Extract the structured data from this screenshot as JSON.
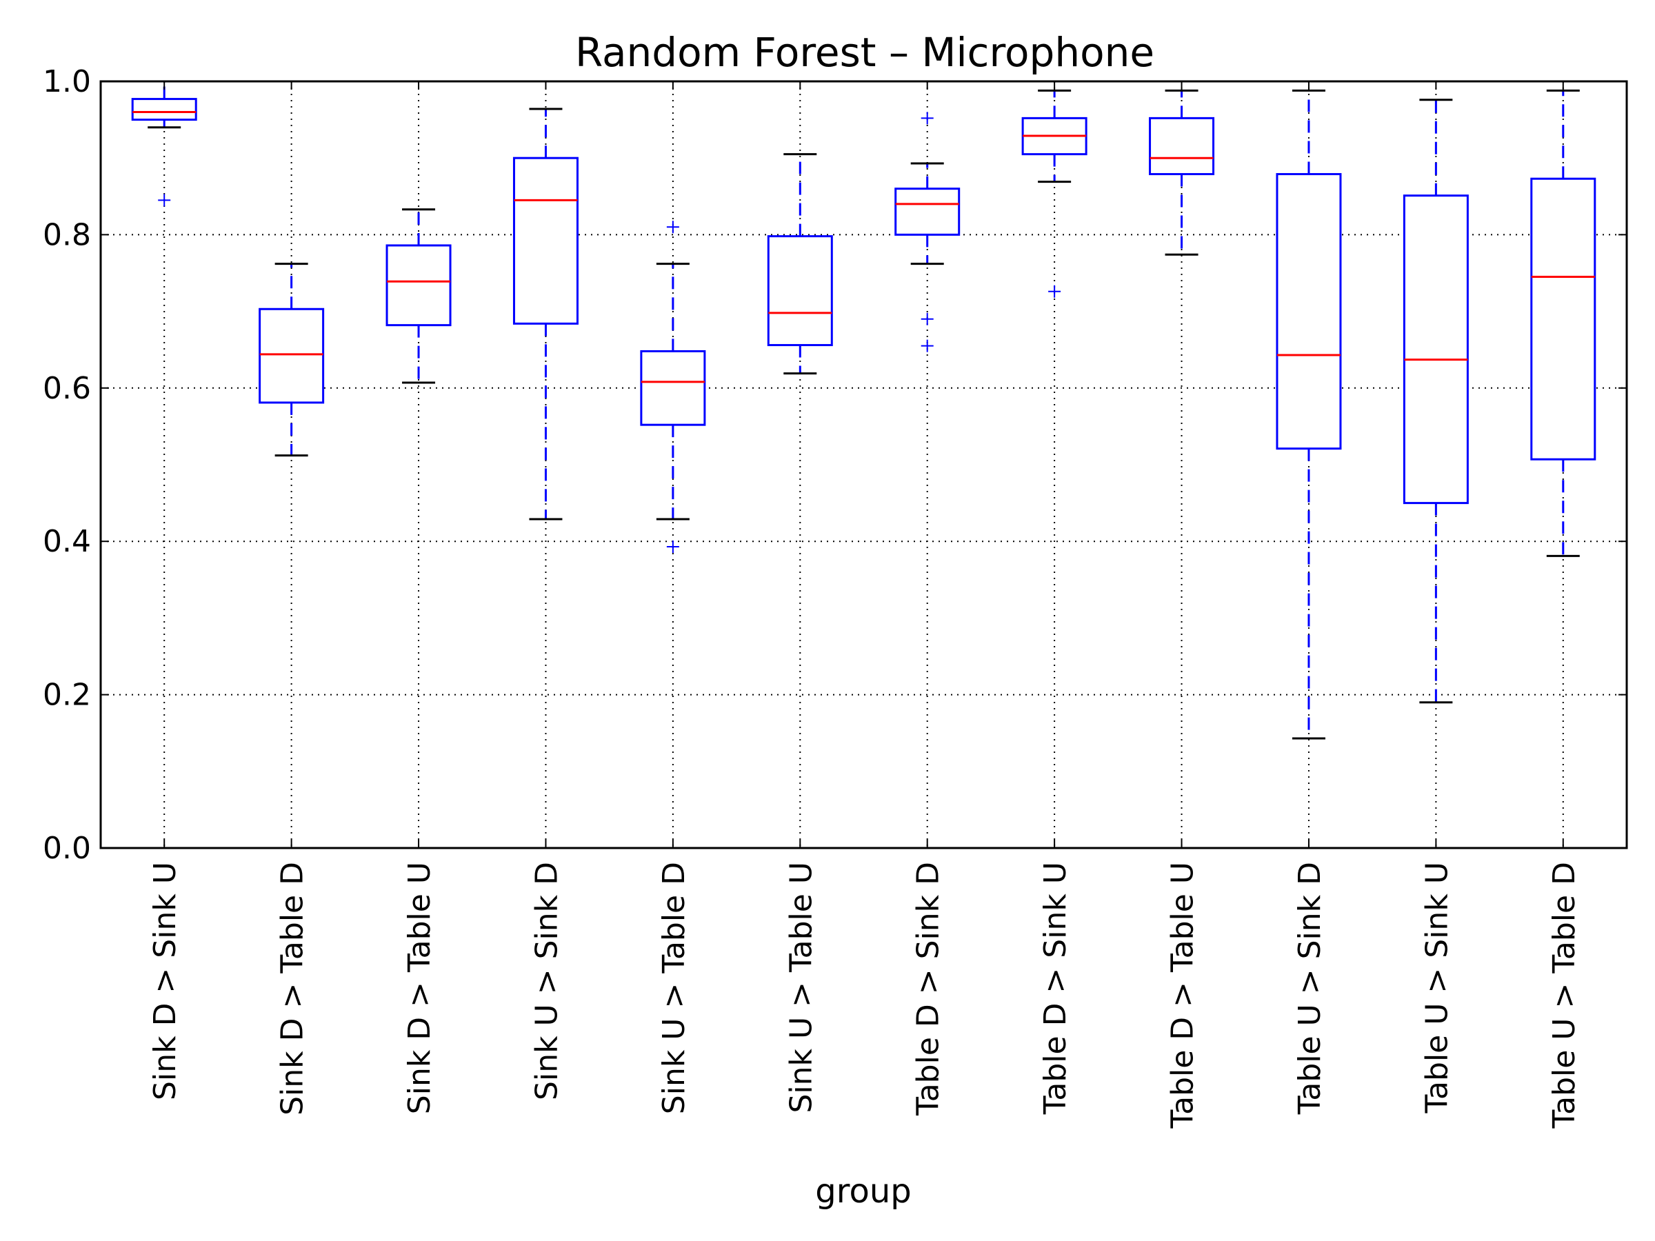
{
  "chart_data": {
    "type": "box",
    "title": "Random Forest – Microphone",
    "xlabel": "group",
    "ylabel": "",
    "ylim": [
      0.0,
      1.0
    ],
    "yticks": [
      "0.0",
      "0.2",
      "0.4",
      "0.6",
      "0.8",
      "1.0"
    ],
    "grid": true,
    "colors": {
      "box": "#0000ff",
      "median": "#ff0000",
      "whisker": "#0000ff",
      "cap": "#000000",
      "flier": "#0000ff",
      "grid": "#000000",
      "frame": "#000000"
    },
    "categories": [
      "Sink D > Sink U",
      "Sink D > Table D",
      "Sink D > Table U",
      "Sink U > Sink D",
      "Sink U > Table D",
      "Sink U > Table U",
      "Table D > Sink D",
      "Table D > Sink U",
      "Table D > Table U",
      "Table U > Sink D",
      "Table U > Sink U",
      "Table U > Table D"
    ],
    "boxes": [
      {
        "whislo": 0.94,
        "q1": 0.95,
        "med": 0.96,
        "q3": 0.977,
        "whishi": 1.0,
        "fliers": [
          0.845
        ]
      },
      {
        "whislo": 0.512,
        "q1": 0.581,
        "med": 0.644,
        "q3": 0.703,
        "whishi": 0.762,
        "fliers": []
      },
      {
        "whislo": 0.607,
        "q1": 0.682,
        "med": 0.739,
        "q3": 0.786,
        "whishi": 0.833,
        "fliers": []
      },
      {
        "whislo": 0.429,
        "q1": 0.684,
        "med": 0.845,
        "q3": 0.9,
        "whishi": 0.964,
        "fliers": []
      },
      {
        "whislo": 0.429,
        "q1": 0.552,
        "med": 0.608,
        "q3": 0.648,
        "whishi": 0.762,
        "fliers": [
          0.81,
          0.393
        ]
      },
      {
        "whislo": 0.619,
        "q1": 0.656,
        "med": 0.698,
        "q3": 0.798,
        "whishi": 0.905,
        "fliers": []
      },
      {
        "whislo": 0.762,
        "q1": 0.8,
        "med": 0.84,
        "q3": 0.86,
        "whishi": 0.893,
        "fliers": [
          0.952,
          0.69,
          0.655
        ]
      },
      {
        "whislo": 0.869,
        "q1": 0.905,
        "med": 0.929,
        "q3": 0.952,
        "whishi": 0.988,
        "fliers": [
          0.726
        ]
      },
      {
        "whislo": 0.774,
        "q1": 0.879,
        "med": 0.9,
        "q3": 0.952,
        "whishi": 0.988,
        "fliers": []
      },
      {
        "whislo": 0.143,
        "q1": 0.521,
        "med": 0.643,
        "q3": 0.879,
        "whishi": 0.988,
        "fliers": []
      },
      {
        "whislo": 0.19,
        "q1": 0.45,
        "med": 0.637,
        "q3": 0.851,
        "whishi": 0.976,
        "fliers": []
      },
      {
        "whislo": 0.381,
        "q1": 0.507,
        "med": 0.745,
        "q3": 0.873,
        "whishi": 0.988,
        "fliers": []
      }
    ]
  }
}
